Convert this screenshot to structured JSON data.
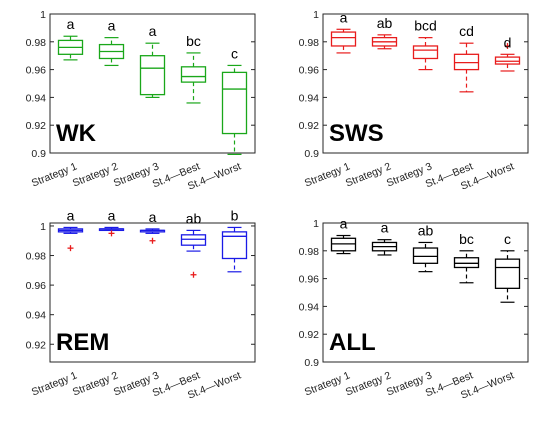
{
  "chart_data": [
    {
      "type": "box",
      "title": "WK",
      "color": "#1aa71a",
      "categories": [
        "Strategy 1",
        "Strategy 2",
        "Strategy 3",
        "St.4—Best",
        "St.4—Worst"
      ],
      "yticks": [
        "0.9",
        "0.92",
        "0.94",
        "0.96",
        "0.98",
        "1"
      ],
      "ylim": [
        0.9,
        1.0
      ],
      "significance": [
        "a",
        "a",
        "a",
        "bc",
        "c"
      ],
      "boxes": [
        {
          "whisker_low": 0.967,
          "q1": 0.971,
          "median": 0.976,
          "q3": 0.981,
          "whisker_high": 0.984,
          "outliers": []
        },
        {
          "whisker_low": 0.963,
          "q1": 0.968,
          "median": 0.973,
          "q3": 0.978,
          "whisker_high": 0.983,
          "outliers": []
        },
        {
          "whisker_low": 0.94,
          "q1": 0.942,
          "median": 0.961,
          "q3": 0.97,
          "whisker_high": 0.979,
          "outliers": []
        },
        {
          "whisker_low": 0.936,
          "q1": 0.951,
          "median": 0.955,
          "q3": 0.962,
          "whisker_high": 0.972,
          "outliers": []
        },
        {
          "whisker_low": 0.899,
          "q1": 0.914,
          "median": 0.946,
          "q3": 0.958,
          "whisker_high": 0.963,
          "outliers": []
        }
      ]
    },
    {
      "type": "box",
      "title": "SWS",
      "color": "#e81c1c",
      "categories": [
        "Strategy 1",
        "Strategy 2",
        "Strategy 3",
        "St.4—Best",
        "St.4—Worst"
      ],
      "yticks": [
        "0.9",
        "0.92",
        "0.94",
        "0.96",
        "0.98",
        "1"
      ],
      "ylim": [
        0.9,
        1.0
      ],
      "significance": [
        "a",
        "ab",
        "bcd",
        "cd",
        "d"
      ],
      "boxes": [
        {
          "whisker_low": 0.972,
          "q1": 0.977,
          "median": 0.983,
          "q3": 0.987,
          "whisker_high": 0.989,
          "outliers": []
        },
        {
          "whisker_low": 0.975,
          "q1": 0.977,
          "median": 0.98,
          "q3": 0.983,
          "whisker_high": 0.985,
          "outliers": []
        },
        {
          "whisker_low": 0.96,
          "q1": 0.968,
          "median": 0.974,
          "q3": 0.977,
          "whisker_high": 0.983,
          "outliers": []
        },
        {
          "whisker_low": 0.944,
          "q1": 0.96,
          "median": 0.965,
          "q3": 0.971,
          "whisker_high": 0.979,
          "outliers": []
        },
        {
          "whisker_low": 0.959,
          "q1": 0.964,
          "median": 0.966,
          "q3": 0.969,
          "whisker_high": 0.971,
          "outliers": [
            0.977
          ]
        }
      ]
    },
    {
      "type": "box",
      "title": "REM",
      "color": "#1a1ae6",
      "categories": [
        "Strategy 1",
        "Strategy 2",
        "Strategy 3",
        "St.4—Best",
        "St.4—Worst"
      ],
      "yticks": [
        "0.92",
        "0.94",
        "0.96",
        "0.98",
        "1"
      ],
      "ylim": [
        0.908,
        1.002
      ],
      "significance": [
        "a",
        "a",
        "a",
        "ab",
        "b"
      ],
      "boxes": [
        {
          "whisker_low": 0.995,
          "q1": 0.996,
          "median": 0.997,
          "q3": 0.998,
          "whisker_high": 0.999,
          "outliers": [
            0.985
          ]
        },
        {
          "whisker_low": 0.997,
          "q1": 0.997,
          "median": 0.998,
          "q3": 0.998,
          "whisker_high": 0.999,
          "outliers": [
            0.995
          ]
        },
        {
          "whisker_low": 0.995,
          "q1": 0.996,
          "median": 0.997,
          "q3": 0.997,
          "whisker_high": 0.998,
          "outliers": [
            0.99
          ]
        },
        {
          "whisker_low": 0.983,
          "q1": 0.987,
          "median": 0.991,
          "q3": 0.994,
          "whisker_high": 0.997,
          "outliers": [
            0.967
          ]
        },
        {
          "whisker_low": 0.969,
          "q1": 0.978,
          "median": 0.993,
          "q3": 0.996,
          "whisker_high": 0.999,
          "outliers": []
        }
      ]
    },
    {
      "type": "box",
      "title": "ALL",
      "color": "#000000",
      "categories": [
        "Strategy 1",
        "Strategy 2",
        "Strategy 3",
        "St.4—Best",
        "St.4—Worst"
      ],
      "yticks": [
        "0.9",
        "0.92",
        "0.94",
        "0.96",
        "0.98",
        "1"
      ],
      "ylim": [
        0.9,
        1.0
      ],
      "significance": [
        "a",
        "a",
        "ab",
        "bc",
        "c"
      ],
      "boxes": [
        {
          "whisker_low": 0.978,
          "q1": 0.98,
          "median": 0.985,
          "q3": 0.989,
          "whisker_high": 0.991,
          "outliers": []
        },
        {
          "whisker_low": 0.977,
          "q1": 0.98,
          "median": 0.983,
          "q3": 0.986,
          "whisker_high": 0.988,
          "outliers": []
        },
        {
          "whisker_low": 0.965,
          "q1": 0.971,
          "median": 0.976,
          "q3": 0.982,
          "whisker_high": 0.986,
          "outliers": []
        },
        {
          "whisker_low": 0.957,
          "q1": 0.968,
          "median": 0.971,
          "q3": 0.975,
          "whisker_high": 0.98,
          "outliers": []
        },
        {
          "whisker_low": 0.943,
          "q1": 0.953,
          "median": 0.968,
          "q3": 0.974,
          "whisker_high": 0.98,
          "outliers": []
        }
      ]
    }
  ]
}
